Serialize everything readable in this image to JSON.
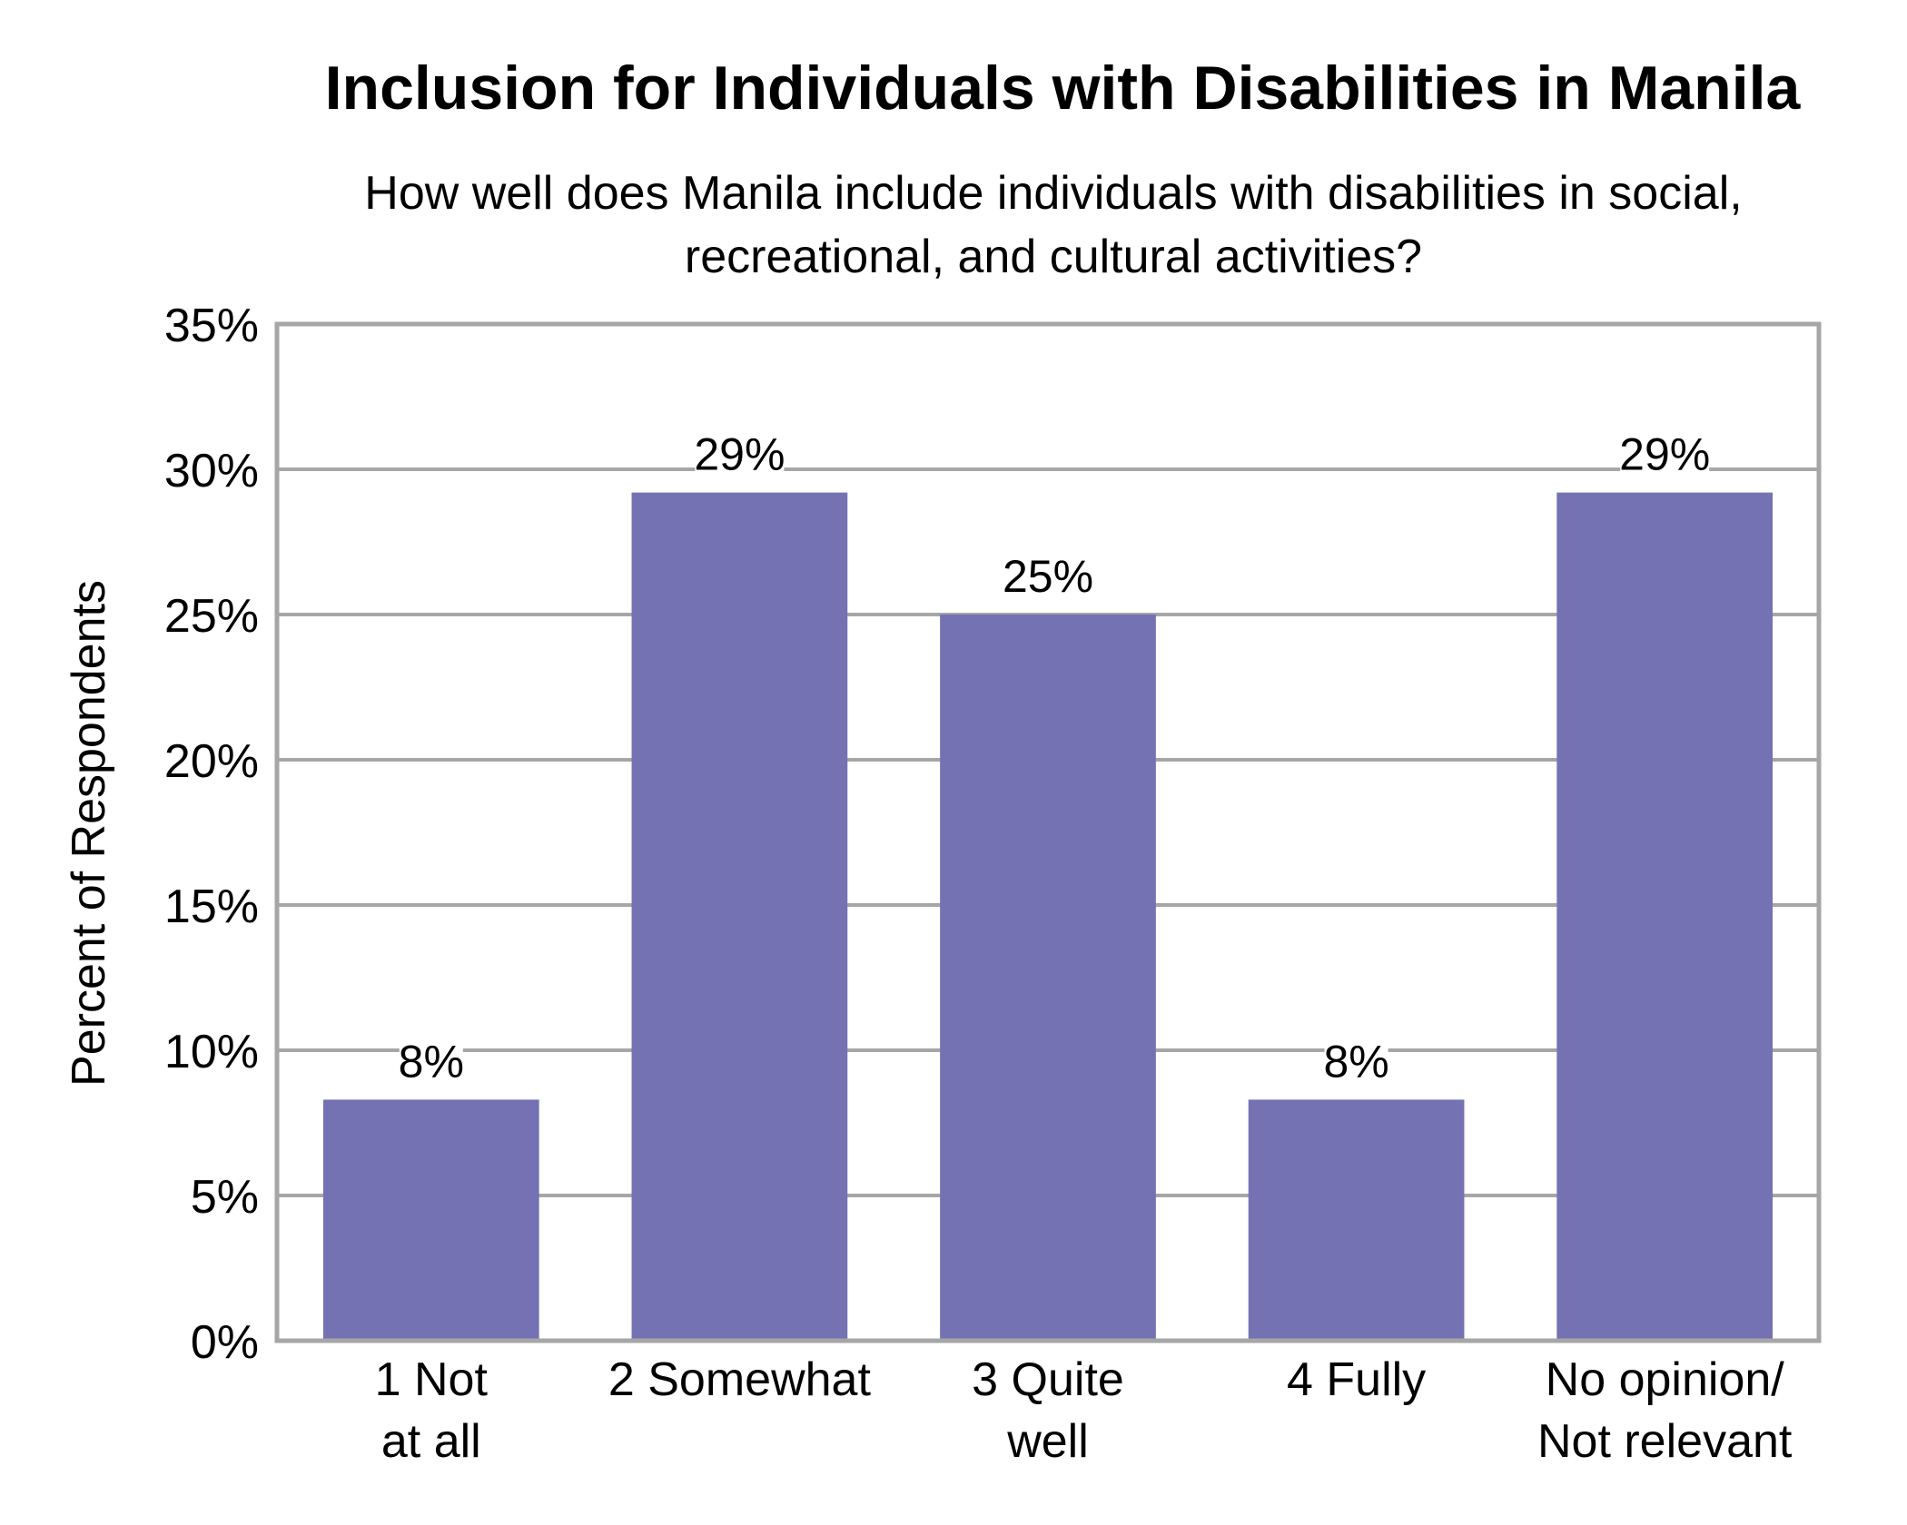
{
  "chart_data": {
    "type": "bar",
    "title": "Inclusion for Individuals with Disabilities in Manila",
    "subtitle_lines": [
      "How well does Manila include individuals with disabilities in social,",
      "recreational, and cultural activities?"
    ],
    "ylabel": "Percent of Respondents",
    "xlabel": "",
    "categories": [
      [
        "1 Not",
        "at all"
      ],
      [
        "2 Somewhat"
      ],
      [
        "3 Quite",
        "well"
      ],
      [
        "4 Fully"
      ],
      [
        "No opinion/",
        "Not relevant"
      ]
    ],
    "values": [
      8.3,
      29.2,
      25.0,
      8.3,
      29.2
    ],
    "data_labels": [
      "8%",
      "29%",
      "25%",
      "8%",
      "29%"
    ],
    "ylim": [
      0,
      35
    ],
    "yticks": [
      0,
      5,
      10,
      15,
      20,
      25,
      30,
      35
    ],
    "ytick_labels": [
      "0%",
      "5%",
      "10%",
      "15%",
      "20%",
      "25%",
      "30%",
      "35%"
    ],
    "grid": true,
    "legend": "none",
    "colors": {
      "bar": "#7572b3",
      "grid": "#a6a6a6",
      "frame": "#a6a6a6",
      "text": "#000000"
    }
  }
}
